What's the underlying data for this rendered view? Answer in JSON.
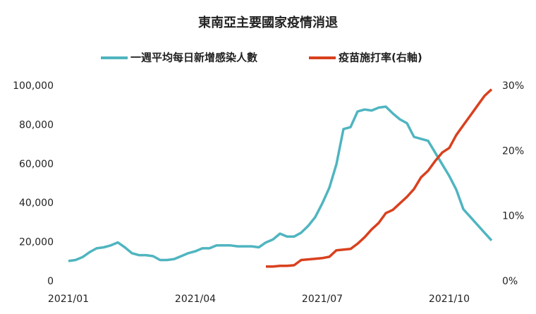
{
  "chart_data": {
    "type": "line",
    "title": "東南亞主要國家疫情消退",
    "categories": [
      "2021/01",
      null,
      null,
      null,
      null,
      null,
      null,
      null,
      null,
      null,
      null,
      null,
      null,
      null,
      null,
      null,
      null,
      null,
      "2021/04",
      null,
      null,
      null,
      null,
      null,
      null,
      null,
      null,
      null,
      null,
      null,
      null,
      null,
      null,
      null,
      null,
      null,
      "2021/07",
      null,
      null,
      null,
      null,
      null,
      null,
      null,
      null,
      null,
      null,
      null,
      null,
      null,
      null,
      null,
      null,
      null,
      "2021/10",
      null,
      null,
      null,
      null,
      null,
      null
    ],
    "series": [
      {
        "name": "一週平均每日新增感染人數",
        "color": "#4fb5c0",
        "values": [
          10500,
          11000,
          12500,
          15000,
          17000,
          17500,
          18500,
          20000,
          17500,
          14500,
          13500,
          13500,
          13000,
          11000,
          11000,
          11500,
          13000,
          14500,
          15500,
          17000,
          17000,
          18500,
          18500,
          18500,
          18000,
          18000,
          18000,
          17500,
          20000,
          21500,
          24500,
          23000,
          23000,
          25000,
          28500,
          33000,
          40000,
          48000,
          60000,
          78000,
          79000,
          87000,
          88000,
          87500,
          89000,
          89500,
          86000,
          83000,
          81000,
          74000,
          73000,
          72000,
          66000,
          60000,
          54000,
          47000,
          37000,
          33000,
          29000,
          25000,
          21000
        ]
      },
      {
        "name": "疫苗施打率(右軸)",
        "color": "#d9401e",
        "axis": "y2",
        "values": [
          null,
          null,
          null,
          null,
          null,
          null,
          null,
          null,
          null,
          null,
          null,
          null,
          null,
          null,
          null,
          null,
          null,
          null,
          null,
          null,
          null,
          null,
          null,
          null,
          null,
          null,
          null,
          null,
          2.3,
          2.3,
          2.4,
          2.4,
          2.5,
          3.3,
          3.4,
          3.5,
          3.6,
          3.8,
          4.8,
          4.9,
          5.0,
          5.8,
          6.8,
          8.0,
          9.0,
          10.5,
          11.0,
          12.0,
          13.0,
          14.2,
          16.0,
          17.0,
          18.5,
          19.8,
          20.5,
          22.5,
          24.0,
          25.5,
          27,
          28.5,
          29.5
        ]
      }
    ],
    "ylim": [
      0,
      100000
    ],
    "yticks": [
      0,
      {
        "value": 20000,
        "label": "20,000"
      },
      {
        "value": 40000,
        "label": "40,000"
      },
      {
        "value": 60000,
        "label": "60,000"
      },
      {
        "value": 80000,
        "label": "80,000"
      },
      {
        "value": 100000,
        "label": "100,000"
      }
    ],
    "y2lim": [
      0,
      30
    ],
    "y2ticks": [
      {
        "value": 0,
        "label": "0%"
      },
      {
        "value": 10,
        "label": "10%"
      },
      {
        "value": 20,
        "label": "20%"
      },
      {
        "value": 30,
        "label": "30%"
      }
    ],
    "grid": false
  }
}
